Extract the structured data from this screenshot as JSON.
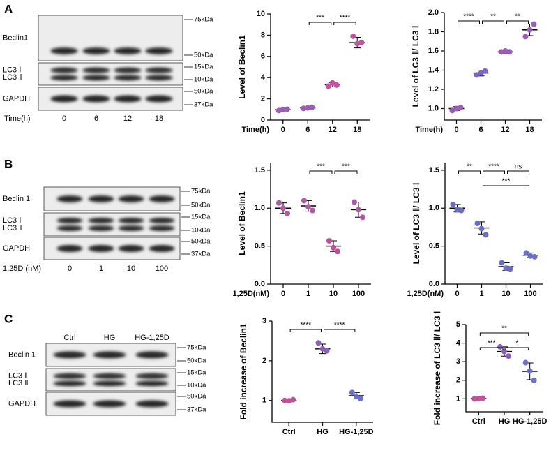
{
  "panels": [
    {
      "letter": "A",
      "blot": {
        "rows": [
          {
            "labels": [
              "Beclin1"
            ],
            "markers": [
              "75kDa",
              "50kDa"
            ]
          },
          {
            "labels": [
              "LC3 Ⅰ",
              "LC3 Ⅱ"
            ],
            "markers": [
              "15kDa",
              "10kDa"
            ]
          },
          {
            "labels": [
              "GAPDH"
            ],
            "markers": [
              "50kDa",
              "37kDa"
            ]
          }
        ],
        "lane_title": "Time(h)",
        "lanes": [
          "0",
          "6",
          "12",
          "18"
        ]
      }
    },
    {
      "letter": "B",
      "blot": {
        "rows": [
          {
            "labels": [
              "Beclin 1"
            ],
            "markers": [
              "75kDa",
              "50kDa"
            ]
          },
          {
            "labels": [
              "LC3 Ⅰ",
              "LC3 Ⅱ"
            ],
            "markers": [
              "15kDa",
              "10kDa"
            ]
          },
          {
            "labels": [
              "GAPDH"
            ],
            "markers": [
              "50kDa",
              "37kDa"
            ]
          }
        ],
        "lane_title": "1,25D (nM)",
        "lanes": [
          "0",
          "1",
          "10",
          "100"
        ]
      }
    },
    {
      "letter": "C",
      "blot": {
        "rows": [
          {
            "labels": [
              "Beclin 1"
            ],
            "markers": [
              "75kDa",
              "50kDa"
            ]
          },
          {
            "labels": [
              "LC3 Ⅰ",
              "LC3 Ⅱ"
            ],
            "markers": [
              "15kDa",
              "10kDa"
            ]
          },
          {
            "labels": [
              "GAPDH"
            ],
            "markers": [
              "50kDa",
              "37kDa"
            ]
          }
        ],
        "lanes": [
          "Ctrl",
          "HG",
          "HG-1,25D"
        ]
      }
    }
  ],
  "chart_data": [
    {
      "type": "dot",
      "ylabel": "Level of Beclin1",
      "xlabel": "Time(h)",
      "categories": [
        "0",
        "6",
        "12",
        "18"
      ],
      "points": [
        [
          0.9,
          1.0,
          1.02
        ],
        [
          1.1,
          1.15,
          1.2
        ],
        [
          3.2,
          3.5,
          3.3
        ],
        [
          7.9,
          7.2,
          7.3
        ]
      ],
      "means": [
        0.97,
        1.15,
        3.33,
        7.3
      ],
      "errors": [
        0.08,
        0.07,
        0.2,
        0.5
      ],
      "colors": [
        "#9a5db3",
        "#9a5db3",
        "#bf539c",
        "#bf539c"
      ],
      "ylim": [
        0,
        10
      ],
      "yticks": [
        0,
        2,
        4,
        6,
        8,
        10
      ],
      "annotations": [
        {
          "from": "6",
          "to": "12",
          "label": "***"
        },
        {
          "from": "12",
          "to": "18",
          "label": "****"
        }
      ]
    },
    {
      "type": "dot",
      "ylabel": "Level of LC3 Ⅱ/ LC3 Ⅰ",
      "xlabel": "Time(h)",
      "categories": [
        "0",
        "6",
        "12",
        "18"
      ],
      "points": [
        [
          0.98,
          1.0,
          1.01
        ],
        [
          1.35,
          1.37,
          1.39
        ],
        [
          1.59,
          1.6,
          1.59
        ],
        [
          1.75,
          1.82,
          1.88
        ]
      ],
      "means": [
        1.0,
        1.37,
        1.59,
        1.82
      ],
      "errors": [
        0.02,
        0.03,
        0.02,
        0.06
      ],
      "colors": [
        "#9a5db3",
        "#7b67bf",
        "#9a5db3",
        "#9a5db3"
      ],
      "ylim": [
        0.88,
        2.0
      ],
      "yticks": [
        {
          "value": 1,
          "label": "1.0"
        },
        1.2,
        1.4,
        1.6,
        1.8,
        {
          "value": 2,
          "label": "2.0"
        }
      ],
      "annotations": [
        {
          "from": "0",
          "to": "6",
          "label": "****"
        },
        {
          "from": "6",
          "to": "12",
          "label": "**"
        },
        {
          "from": "12",
          "to": "18",
          "label": "**"
        }
      ]
    },
    {
      "type": "dot",
      "ylabel": "Level of Beclin1",
      "xlabel": "1,25D(nM)",
      "categories": [
        "0",
        "1",
        "10",
        "100"
      ],
      "points": [
        [
          1.07,
          1.0,
          0.93
        ],
        [
          1.1,
          1.02,
          0.97
        ],
        [
          0.57,
          0.48,
          0.43
        ],
        [
          1.08,
          0.98,
          0.88
        ]
      ],
      "means": [
        1.0,
        1.03,
        0.5,
        0.98
      ],
      "errors": [
        0.07,
        0.07,
        0.07,
        0.1
      ],
      "colors": [
        "#b05aa6",
        "#b05aa6",
        "#c14f95",
        "#b05aa6"
      ],
      "ylim": [
        0,
        1.6
      ],
      "yticks": [
        {
          "value": 0,
          "label": "0.0"
        },
        0.5,
        {
          "value": 1,
          "label": "1.0"
        },
        1.5
      ],
      "annotations": [
        {
          "from": "1",
          "to": "10",
          "label": "***"
        },
        {
          "from": "10",
          "to": "100",
          "label": "***"
        }
      ]
    },
    {
      "type": "dot",
      "ylabel": "Level of LC3 Ⅱ/ LC3 Ⅰ",
      "xlabel": "1,25D(nM)",
      "categories": [
        "0",
        "1",
        "10",
        "100"
      ],
      "points": [
        [
          1.05,
          0.98,
          0.97
        ],
        [
          0.8,
          0.73,
          0.65
        ],
        [
          0.28,
          0.21,
          0.2
        ],
        [
          0.41,
          0.37,
          0.36
        ]
      ],
      "means": [
        1.0,
        0.74,
        0.23,
        0.38
      ],
      "errors": [
        0.05,
        0.08,
        0.05,
        0.03
      ],
      "colors": [
        "#6a6fc4",
        "#6a6fc4",
        "#6a6fc4",
        "#6a6fc4"
      ],
      "ylim": [
        0,
        1.6
      ],
      "yticks": [
        {
          "value": 0,
          "label": "0.0"
        },
        0.5,
        {
          "value": 1,
          "label": "1.0"
        },
        1.5
      ],
      "annotations": [
        {
          "from": "0",
          "to": "1",
          "label": "**"
        },
        {
          "from": "1",
          "to": "10",
          "label": "****"
        },
        {
          "from": "10",
          "to": "100",
          "label": "ns"
        },
        {
          "from": "1",
          "to": "100",
          "label": "***"
        }
      ]
    },
    {
      "type": "dot",
      "ylabel": "Fold increase of Beclin1",
      "categories": [
        "Ctrl",
        "HG",
        "HG-1,25D"
      ],
      "points": [
        [
          1.0,
          0.99,
          1.02
        ],
        [
          2.45,
          2.3,
          2.25
        ],
        [
          1.2,
          1.1,
          1.05
        ]
      ],
      "means": [
        1.0,
        2.3,
        1.12
      ],
      "errors": [
        0.02,
        0.12,
        0.08
      ],
      "colors": [
        "#c1519a",
        "#8a5fb5",
        "#6c72c6"
      ],
      "ylim": [
        0.45,
        3
      ],
      "yticks": [
        1,
        2,
        3
      ],
      "annotations": [
        {
          "from": "Ctrl",
          "to": "HG",
          "label": "****"
        },
        {
          "from": "HG",
          "to": "HG-1,25D",
          "label": "****"
        }
      ]
    },
    {
      "type": "dot",
      "ylabel": "Fold increase of LC3 Ⅱ/ LC3 Ⅰ",
      "categories": [
        "Ctrl",
        "HG",
        "HG-1,25D"
      ],
      "points": [
        [
          1.0,
          1.02,
          1.03
        ],
        [
          3.8,
          3.55,
          3.3
        ],
        [
          2.95,
          2.5,
          2.0
        ]
      ],
      "means": [
        1.02,
        3.55,
        2.48
      ],
      "errors": [
        0.02,
        0.25,
        0.45
      ],
      "colors": [
        "#c1519a",
        "#8a5fb5",
        "#6c72c6"
      ],
      "ylim": [
        0.3,
        5
      ],
      "yticks": [
        1,
        2,
        3,
        4,
        5
      ],
      "annotations": [
        {
          "from": "Ctrl",
          "to": "HG-1,25D",
          "label": "**"
        },
        {
          "from": "Ctrl",
          "to": "HG",
          "label": "***"
        },
        {
          "from": "HG",
          "to": "HG-1,25D",
          "label": "*"
        }
      ]
    }
  ]
}
